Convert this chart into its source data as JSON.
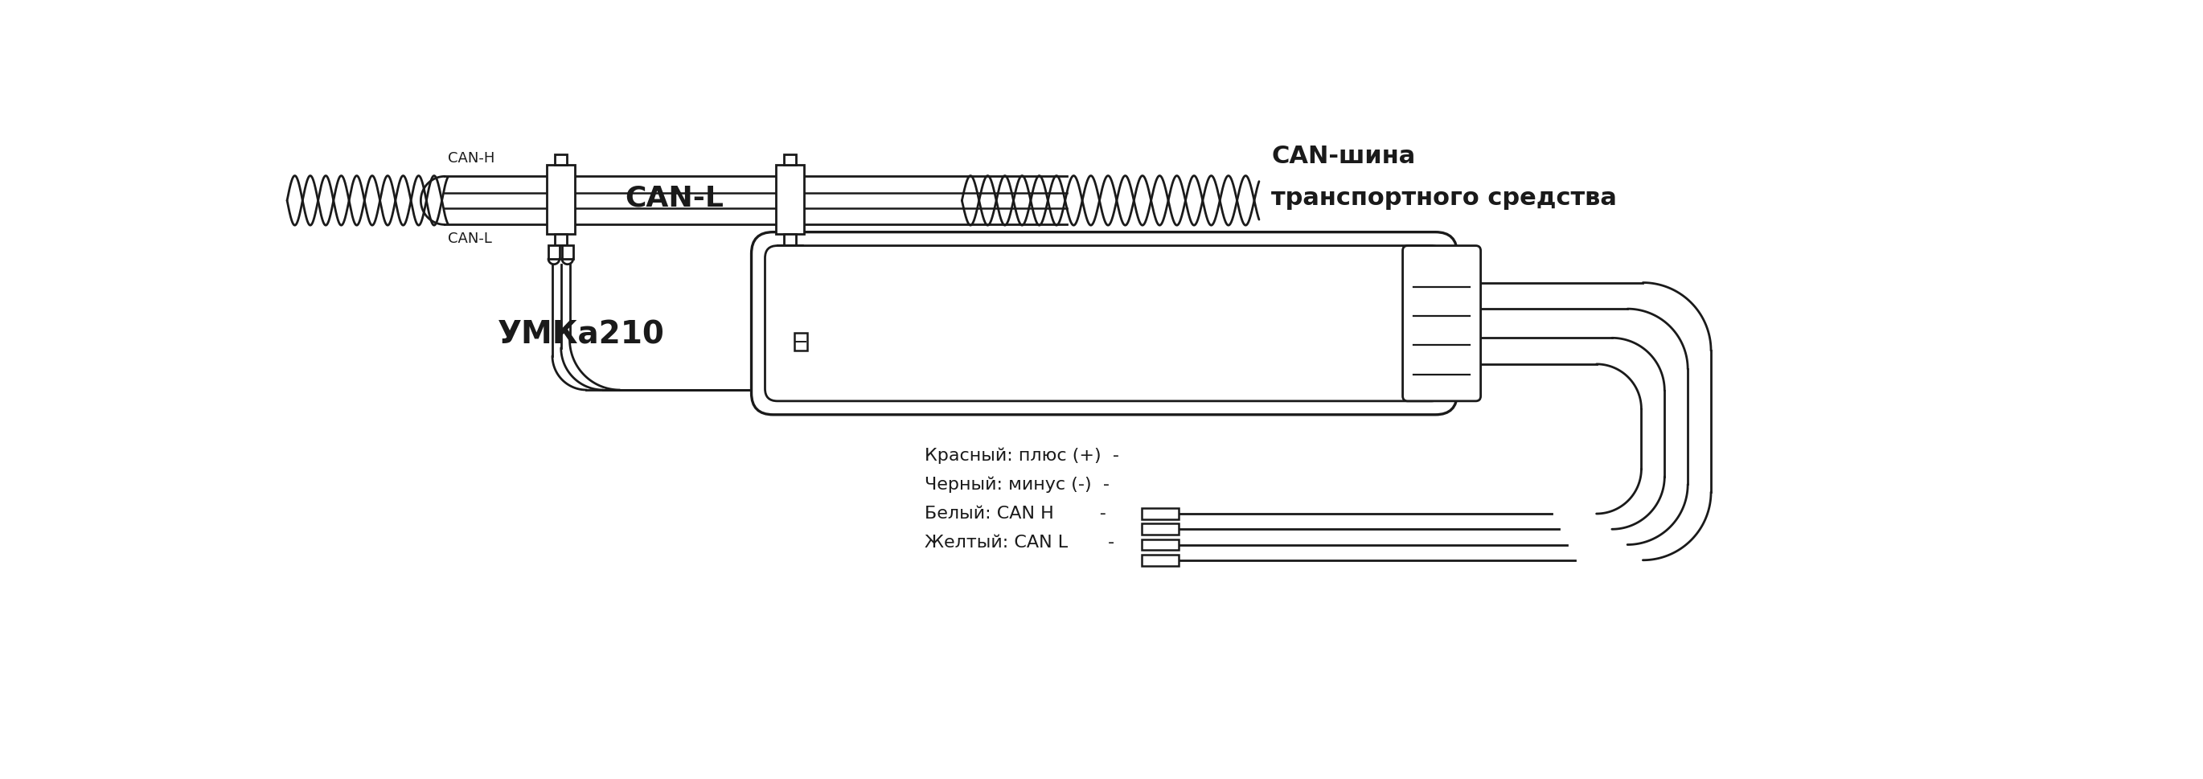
{
  "bg_color": "#ffffff",
  "line_color": "#1a1a1a",
  "lw": 2.0,
  "label_can_h": "CAN-H",
  "label_can_l_left": "CAN-L",
  "label_can_l_mid": "CAN-L",
  "label_bus_line1": "CAN-шина",
  "label_bus_line2": "транспортного средства",
  "label_device": "УМКа210",
  "legend_labels": [
    "Красный: плюс (+)  -",
    "Черный: минус (-)  -",
    "Белый: CAN H        -",
    "Желтый: CAN L       -"
  ]
}
